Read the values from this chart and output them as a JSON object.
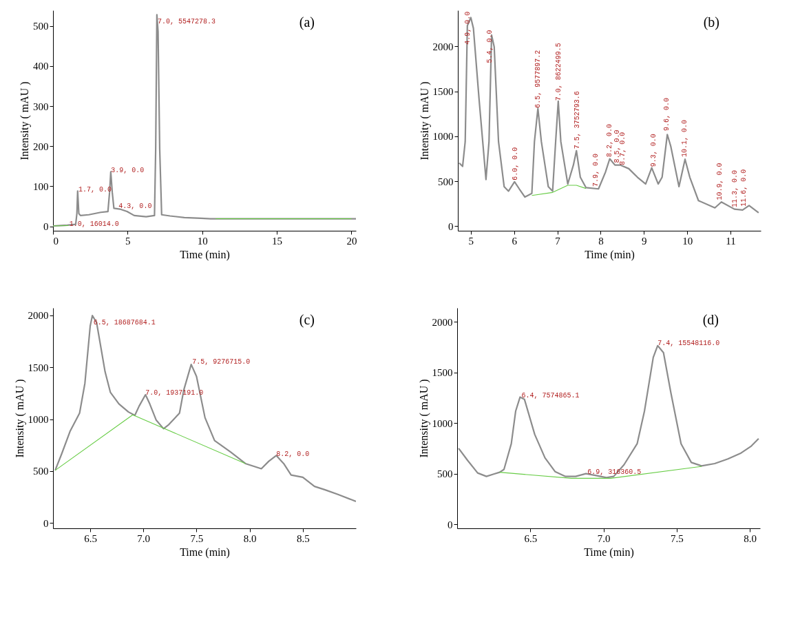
{
  "chart_data": [
    {
      "type": "line",
      "xlabel": "Time (min)",
      "ylabel": "Intensity ( mAU )",
      "xlim": [
        0,
        20.3
      ],
      "ylim": [
        -11,
        539
      ],
      "xticks": [
        0,
        5,
        10,
        15,
        20
      ],
      "yticks": [
        0,
        100,
        200,
        300,
        400,
        500
      ],
      "series": [
        {
          "color": "#8c8c8c",
          "x": [
            0,
            0.96,
            1.52,
            1.6,
            1.65,
            1.73,
            1.84,
            2.4,
            3.2,
            3.68,
            3.79,
            3.87,
            3.97,
            4.08,
            4.48,
            4.96,
            5.44,
            6.24,
            6.8,
            6.88,
            6.96,
            7.04,
            7.15,
            7.28,
            7.84,
            8.8,
            9.92,
            10.56,
            12,
            20,
            20.3
          ],
          "values": [
            1,
            3,
            5,
            32,
            88,
            32,
            27,
            29,
            35,
            37,
            85,
            136,
            85,
            45,
            43,
            37,
            27,
            24,
            27,
            192,
            528,
            486,
            192,
            29,
            26,
            22,
            20,
            19,
            19,
            19,
            19
          ]
        },
        {
          "color": "#66cc44",
          "x": [
            0,
            1.04
          ],
          "values": [
            1,
            2
          ]
        },
        {
          "color": "#66cc44",
          "x": [
            10.9,
            20
          ],
          "values": [
            19,
            19
          ]
        }
      ],
      "annotations": [
        "(a)",
        {
          "text": "7.0, 5547278.3",
          "x": 7.01,
          "y": 512
        },
        {
          "text": "3.9, 0.0",
          "x": 3.89,
          "y": 140
        },
        {
          "text": "1.7, 0.0",
          "x": 1.71,
          "y": 92
        },
        {
          "text": "4.3, 0.0",
          "x": 4.4,
          "y": 51
        },
        {
          "text": "1.0, 16014.0",
          "x": 1.09,
          "y": 7
        }
      ]
    },
    {
      "type": "line",
      "xlabel": "Time (min)",
      "ylabel": "Intensity ( mAU )",
      "xlim": [
        4.7,
        11.7
      ],
      "ylim": [
        -50,
        2400
      ],
      "xticks": [
        5,
        6,
        7,
        8,
        9,
        10,
        11
      ],
      "yticks": [
        0,
        500,
        1000,
        1500,
        2000
      ],
      "series": [
        {
          "color": "#8c8c8c",
          "x": [
            4.73,
            4.81,
            4.87,
            4.92,
            5.0,
            5.06,
            5.19,
            5.35,
            5.42,
            5.48,
            5.54,
            5.64,
            5.77,
            5.87,
            6.01,
            6.12,
            6.25,
            6.41,
            6.47,
            6.55,
            6.63,
            6.79,
            6.89,
            6.96,
            7.02,
            7.08,
            7.24,
            7.37,
            7.44,
            7.53,
            7.66,
            7.95,
            8.11,
            8.21,
            8.33,
            8.46,
            8.65,
            8.85,
            9.04,
            9.18,
            9.33,
            9.42,
            9.54,
            9.62,
            9.81,
            9.95,
            10.06,
            10.26,
            10.64,
            10.79,
            11.09,
            11.28,
            11.43,
            11.65
          ],
          "values": [
            705,
            665,
            940,
            2230,
            2320,
            2200,
            1415,
            520,
            940,
            2125,
            1995,
            940,
            440,
            390,
            495,
            415,
            325,
            365,
            940,
            1310,
            940,
            440,
            390,
            940,
            1390,
            940,
            470,
            680,
            840,
            545,
            430,
            415,
            600,
            750,
            680,
            680,
            640,
            545,
            470,
            650,
            470,
            545,
            1020,
            890,
            440,
            745,
            545,
            285,
            205,
            270,
            190,
            180,
            230,
            150
          ]
        },
        {
          "color": "#66cc44",
          "x": [
            6.41,
            6.89,
            7.24,
            7.44,
            7.66
          ],
          "values": [
            342,
            376,
            455,
            455,
            420
          ]
        }
      ],
      "annotations": [
        "(b)",
        {
          "text": "4.9, 0.0",
          "x": 4.92,
          "y": 2020
        },
        {
          "text": "5.4, 0.0",
          "x": 5.43,
          "y": 1815
        },
        {
          "text": "6.0, 0.0",
          "x": 6.02,
          "y": 510
        },
        {
          "text": "6.5, 9577897.2",
          "x": 6.55,
          "y": 1315
        },
        {
          "text": "7.0, 8622499.5",
          "x": 7.03,
          "y": 1395
        },
        {
          "text": "7.5, 3752793.6",
          "x": 7.45,
          "y": 860
        },
        {
          "text": "7.9, 0.0",
          "x": 7.88,
          "y": 440
        },
        {
          "text": "8.2, 0.0",
          "x": 8.2,
          "y": 770
        },
        {
          "text": "8.5, 0.0",
          "x": 8.38,
          "y": 705
        },
        {
          "text": "8.7, 0.0",
          "x": 8.5,
          "y": 680
        },
        {
          "text": "9.3, 0.0",
          "x": 9.22,
          "y": 660
        },
        {
          "text": "9.6, 0.0",
          "x": 9.52,
          "y": 1060
        },
        {
          "text": "10.1, 0.0",
          "x": 9.94,
          "y": 770
        },
        {
          "text": "10.9, 0.0",
          "x": 10.75,
          "y": 290
        },
        {
          "text": "11.3, 0.0",
          "x": 11.1,
          "y": 210
        },
        {
          "text": "11.6, 0.0",
          "x": 11.3,
          "y": 220
        }
      ]
    },
    {
      "type": "line",
      "xlabel": "Time (min)",
      "ylabel": "Intensity ( mAU )",
      "xlim": [
        6.15,
        9.0
      ],
      "ylim": [
        -50,
        2070
      ],
      "xticks": [
        {
          "value": 6.5,
          "label": "6.5"
        },
        {
          "value": 7,
          "label": "7.0"
        },
        {
          "value": 7.5,
          "label": "7.5"
        },
        {
          "value": 8,
          "label": "8.0"
        },
        {
          "value": 8.5,
          "label": "8.5"
        }
      ],
      "yticks": [
        0,
        500,
        1000,
        1500,
        2000
      ],
      "series": [
        {
          "color": "#8c8c8c",
          "x": [
            6.17,
            6.23,
            6.31,
            6.4,
            6.45,
            6.5,
            6.52,
            6.56,
            6.64,
            6.69,
            6.77,
            6.86,
            6.92,
            6.96,
            7.02,
            7.06,
            7.12,
            7.19,
            7.24,
            7.34,
            7.38,
            7.45,
            7.5,
            7.58,
            7.67,
            7.82,
            7.96,
            8.11,
            8.18,
            8.25,
            8.32,
            8.39,
            8.5,
            8.61,
            8.71,
            8.83,
            9.0
          ],
          "values": [
            507,
            662,
            882,
            1058,
            1345,
            1896,
            1996,
            1929,
            1455,
            1257,
            1147,
            1069,
            1036,
            1125,
            1235,
            1147,
            992,
            908,
            948,
            1058,
            1279,
            1526,
            1411,
            1014,
            794,
            684,
            573,
            523,
            595,
            650,
            573,
            463,
            441,
            353,
            320,
            276,
            209
          ]
        },
        {
          "color": "#66cc44",
          "x": [
            6.17,
            6.9,
            7.96
          ],
          "values": [
            507,
            1041,
            573
          ]
        }
      ],
      "annotations": [
        "(c)",
        {
          "text": "6.5, 18687684.1",
          "x": 6.53,
          "y": 1934
        },
        {
          "text": "7.0, 1937191.0",
          "x": 7.02,
          "y": 1252
        },
        {
          "text": "7.5, 9276715.0",
          "x": 7.46,
          "y": 1555
        },
        {
          "text": "8.2, 0.0",
          "x": 8.25,
          "y": 668
        }
      ]
    },
    {
      "type": "line",
      "xlabel": "Time (min)",
      "ylabel": "Intensity ( mAU )",
      "xlim": [
        6.0,
        8.07
      ],
      "ylim": [
        -40,
        2138
      ],
      "xticks": [
        {
          "value": 6.5,
          "label": "6.5"
        },
        {
          "value": 7,
          "label": "7.0"
        },
        {
          "value": 7.5,
          "label": "7.5"
        },
        {
          "value": 8,
          "label": "8.0"
        }
      ],
      "yticks": [
        0,
        500,
        1000,
        1500,
        2000
      ],
      "series": [
        {
          "color": "#8c8c8c",
          "x": [
            6.01,
            6.07,
            6.14,
            6.2,
            6.25,
            6.29,
            6.32,
            6.37,
            6.4,
            6.43,
            6.46,
            6.53,
            6.6,
            6.67,
            6.74,
            6.81,
            6.88,
            6.95,
            7.02,
            7.07,
            7.14,
            7.23,
            7.28,
            7.34,
            7.37,
            7.41,
            7.46,
            7.53,
            7.6,
            7.67,
            7.76,
            7.85,
            7.94,
            8.01,
            8.06
          ],
          "values": [
            750,
            634,
            507,
            473,
            496,
            514,
            542,
            796,
            1119,
            1257,
            1234,
            888,
            657,
            519,
            473,
            473,
            500,
            482,
            461,
            473,
            588,
            796,
            1119,
            1649,
            1765,
            1696,
            1303,
            796,
            611,
            577,
            600,
            646,
            704,
            773,
            847
          ]
        },
        {
          "color": "#66cc44",
          "x": [
            6.29,
            6.78,
            7.05,
            7.67
          ],
          "values": [
            514,
            454,
            454,
            572
          ]
        }
      ],
      "annotations": [
        "(d)",
        {
          "text": "6.4, 7574865.1",
          "x": 6.44,
          "y": 1276
        },
        {
          "text": "6.9, 316360.5",
          "x": 6.89,
          "y": 519
        },
        {
          "text": "7.4, 15548116.0",
          "x": 7.37,
          "y": 1788
        }
      ]
    }
  ]
}
